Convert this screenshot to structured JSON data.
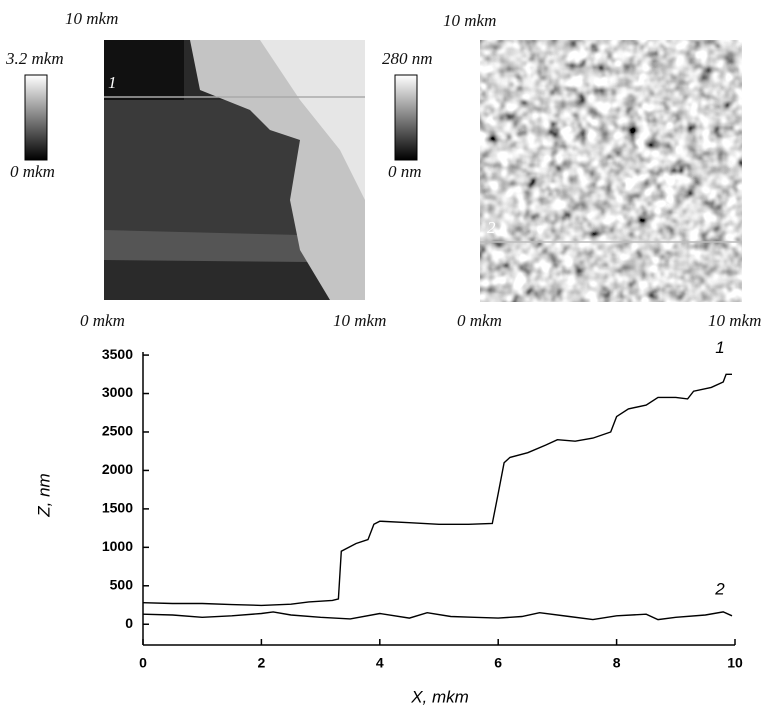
{
  "images": [
    {
      "top_label": "10 mkm",
      "x_start": "0 mkm",
      "x_end": "10 mkm",
      "scale_max": "3.2 mkm",
      "scale_min": "0 mkm",
      "profile_label": "1"
    },
    {
      "top_label": "10 mkm",
      "x_start": "0 mkm",
      "x_end": "10 mkm",
      "scale_max": "280 nm",
      "scale_min": "0 nm",
      "profile_label": "2"
    }
  ],
  "chart_data": {
    "type": "line",
    "x_label": "X, mkm",
    "y_label": "Z, nm",
    "xlim": [
      0,
      10
    ],
    "ylim": [
      -270,
      3540
    ],
    "xticks": [
      0,
      2,
      4,
      6,
      8,
      10
    ],
    "yticks": [
      0,
      500,
      1000,
      1500,
      2000,
      2500,
      3000,
      3500
    ],
    "series": [
      {
        "name": "1",
        "color": "#000000",
        "x": [
          0,
          0.5,
          1,
          1.5,
          2,
          2.5,
          2.8,
          3.2,
          3.3,
          3.35,
          3.6,
          3.8,
          3.9,
          4,
          4.5,
          5,
          5.5,
          5.9,
          6,
          6.1,
          6.2,
          6.5,
          6.8,
          7,
          7.3,
          7.6,
          7.9,
          8,
          8.2,
          8.5,
          8.7,
          9,
          9.2,
          9.3,
          9.6,
          9.8,
          9.85,
          9.95
        ],
        "values": [
          280,
          270,
          270,
          255,
          245,
          260,
          290,
          310,
          330,
          950,
          1050,
          1100,
          1300,
          1340,
          1320,
          1300,
          1300,
          1310,
          1700,
          2100,
          2170,
          2230,
          2330,
          2400,
          2380,
          2420,
          2500,
          2700,
          2800,
          2850,
          2950,
          2950,
          2930,
          3030,
          3080,
          3150,
          3250,
          3250
        ]
      },
      {
        "name": "2",
        "color": "#000000",
        "x": [
          0,
          0.5,
          1,
          1.5,
          2,
          2.2,
          2.5,
          3,
          3.5,
          4,
          4.5,
          4.8,
          5.2,
          5.6,
          6,
          6.4,
          6.7,
          7.2,
          7.6,
          8,
          8.5,
          8.7,
          9,
          9.5,
          9.8,
          9.95
        ],
        "values": [
          130,
          120,
          90,
          110,
          140,
          160,
          120,
          90,
          70,
          140,
          80,
          150,
          100,
          90,
          80,
          100,
          150,
          100,
          60,
          110,
          130,
          60,
          90,
          120,
          160,
          110
        ]
      }
    ]
  }
}
